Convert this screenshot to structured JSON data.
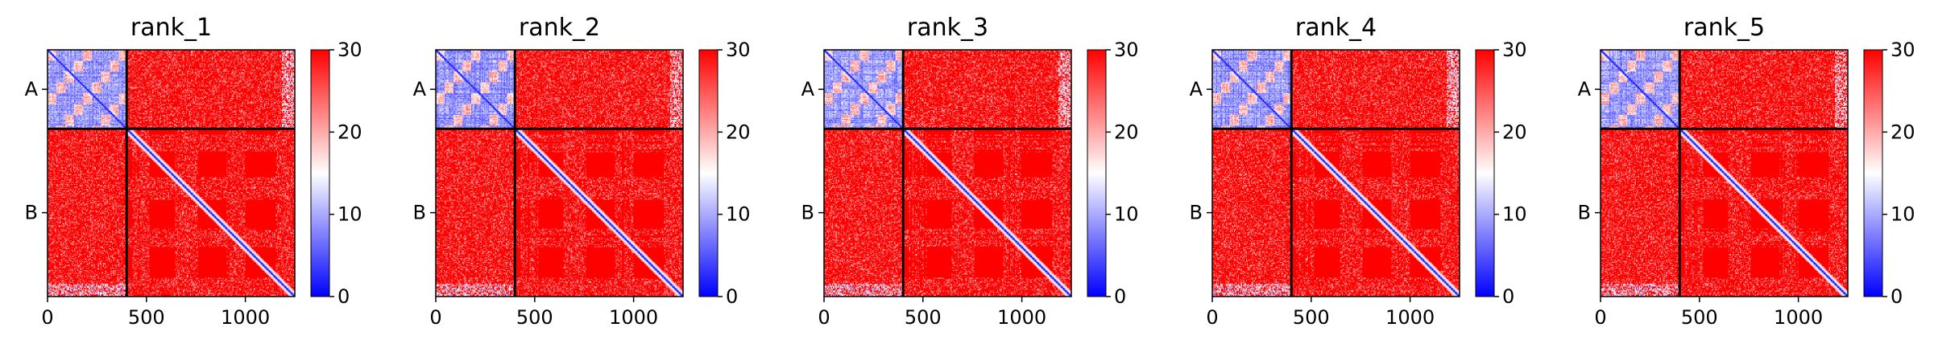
{
  "chart_data": {
    "type": "heatmap",
    "colormap": {
      "name": "bwr",
      "low": "#0000ff",
      "mid": "#ffffff",
      "high": "#ff0000"
    },
    "color_range": [
      0,
      30
    ],
    "colorbar_ticks": [
      0,
      10,
      20,
      30
    ],
    "x_range": [
      0,
      1250
    ],
    "y_range": [
      0,
      1250
    ],
    "x_ticks": [
      0,
      500,
      1000
    ],
    "chain_boundary": 400,
    "chain_labels": [
      "A",
      "B"
    ],
    "diagonal_value": 0,
    "grid": false,
    "panels": [
      {
        "title": "rank_1"
      },
      {
        "title": "rank_2"
      },
      {
        "title": "rank_3"
      },
      {
        "title": "rank_4"
      },
      {
        "title": "rank_5"
      }
    ]
  }
}
